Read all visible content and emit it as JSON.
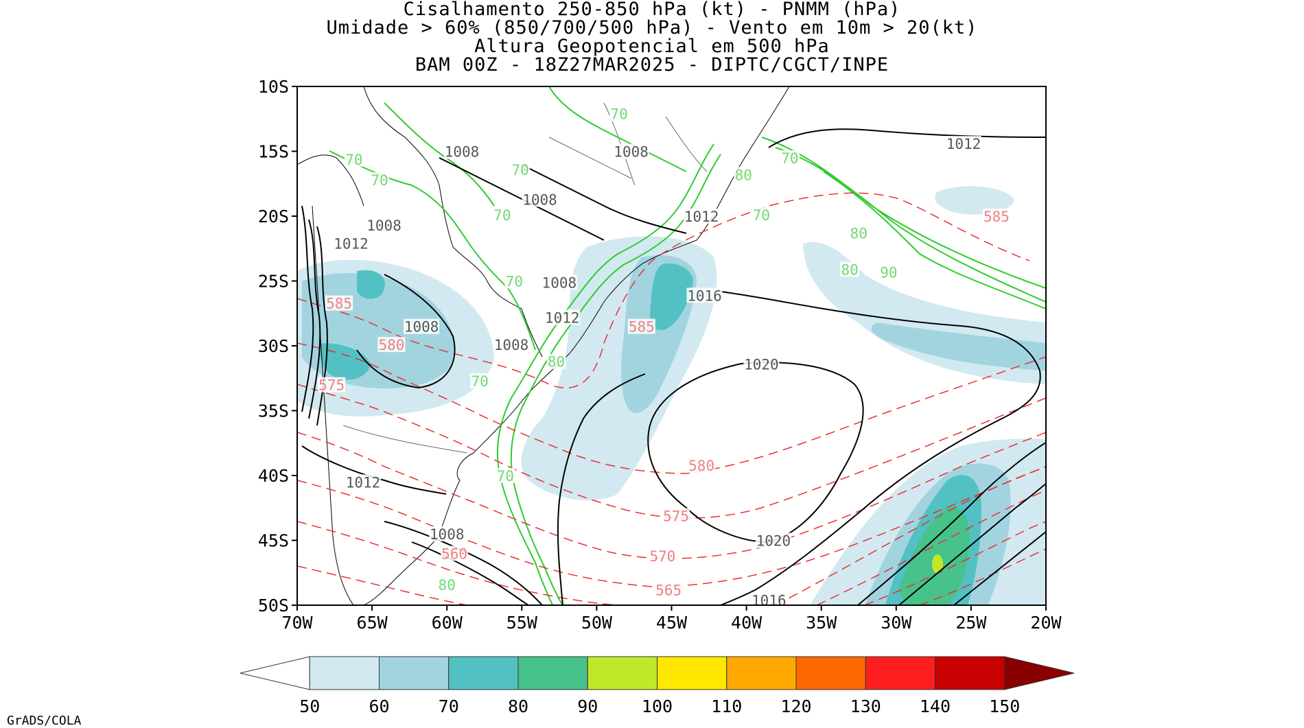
{
  "titles": {
    "line1": "Cisalhamento 250-850 hPa (kt) - PNMM (hPa)",
    "line2": "Umidade > 60% (850/700/500 hPa) - Vento em 10m > 20(kt)",
    "line3": "Altura Geopotencial em 500 hPa",
    "line4": "BAM 00Z - 18Z27MAR2025 - DIPTC/CGCT/INPE"
  },
  "credit": "GrADS/COLA",
  "map": {
    "lon_range": [
      -70,
      -20
    ],
    "lat_range": [
      -50,
      -10
    ],
    "lat_ticks": [
      {
        "value": -10,
        "label": "10S"
      },
      {
        "value": -15,
        "label": "15S"
      },
      {
        "value": -20,
        "label": "20S"
      },
      {
        "value": -25,
        "label": "25S"
      },
      {
        "value": -30,
        "label": "30S"
      },
      {
        "value": -35,
        "label": "35S"
      },
      {
        "value": -40,
        "label": "40S"
      },
      {
        "value": -45,
        "label": "45S"
      },
      {
        "value": -50,
        "label": "50S"
      }
    ],
    "lon_ticks": [
      {
        "value": -70,
        "label": "70W"
      },
      {
        "value": -65,
        "label": "65W"
      },
      {
        "value": -60,
        "label": "60W"
      },
      {
        "value": -55,
        "label": "55W"
      },
      {
        "value": -50,
        "label": "50W"
      },
      {
        "value": -45,
        "label": "45W"
      },
      {
        "value": -40,
        "label": "40W"
      },
      {
        "value": -35,
        "label": "35W"
      },
      {
        "value": -30,
        "label": "30W"
      },
      {
        "value": -25,
        "label": "25W"
      },
      {
        "value": -20,
        "label": "20W"
      }
    ],
    "colors": {
      "pressure": "#000000",
      "geopotential": "#e83030",
      "geopotential_label": "#f08080",
      "humidity": "#2ecc2e",
      "humidity_label": "#72d872",
      "pressure_label": "#555555",
      "coast": "#000000"
    },
    "pressure_labels": [
      {
        "text": "1012",
        "lon": -25.5,
        "lat": -14.4
      },
      {
        "text": "1008",
        "lon": -59.0,
        "lat": -15.0
      },
      {
        "text": "1008",
        "lon": -47.7,
        "lat": -15.0
      },
      {
        "text": "1008",
        "lon": -53.8,
        "lat": -18.7
      },
      {
        "text": "1008",
        "lon": -64.2,
        "lat": -20.7
      },
      {
        "text": "1012",
        "lon": -66.4,
        "lat": -22.1
      },
      {
        "text": "1012",
        "lon": -43.0,
        "lat": -20.0
      },
      {
        "text": "1008",
        "lon": -52.5,
        "lat": -25.1
      },
      {
        "text": "1016",
        "lon": -42.8,
        "lat": -26.1
      },
      {
        "text": "1012",
        "lon": -52.3,
        "lat": -27.8
      },
      {
        "text": "1008",
        "lon": -61.7,
        "lat": -28.5
      },
      {
        "text": "1008",
        "lon": -55.7,
        "lat": -29.9
      },
      {
        "text": "1020",
        "lon": -39.0,
        "lat": -31.4
      },
      {
        "text": "1012",
        "lon": -65.6,
        "lat": -40.5
      },
      {
        "text": "1008",
        "lon": -60.0,
        "lat": -44.5
      },
      {
        "text": "1020",
        "lon": -38.2,
        "lat": -45.0
      },
      {
        "text": "1016",
        "lon": -38.5,
        "lat": -49.6
      }
    ],
    "geopotential_labels": [
      {
        "text": "585",
        "lon": -23.3,
        "lat": -20.0
      },
      {
        "text": "585",
        "lon": -67.2,
        "lat": -26.7
      },
      {
        "text": "580",
        "lon": -63.7,
        "lat": -29.9
      },
      {
        "text": "575",
        "lon": -67.7,
        "lat": -33.0
      },
      {
        "text": "585",
        "lon": -47.0,
        "lat": -28.5
      },
      {
        "text": "580",
        "lon": -43.0,
        "lat": -39.2
      },
      {
        "text": "575",
        "lon": -44.7,
        "lat": -43.1
      },
      {
        "text": "570",
        "lon": -45.6,
        "lat": -46.2
      },
      {
        "text": "565",
        "lon": -45.2,
        "lat": -48.8
      },
      {
        "text": "560",
        "lon": -59.5,
        "lat": -46.0
      }
    ],
    "humidity_labels": [
      {
        "text": "70",
        "lon": -48.5,
        "lat": -12.1
      },
      {
        "text": "70",
        "lon": -66.2,
        "lat": -15.6
      },
      {
        "text": "70",
        "lon": -64.5,
        "lat": -17.2
      },
      {
        "text": "70",
        "lon": -55.1,
        "lat": -16.4
      },
      {
        "text": "70",
        "lon": -56.3,
        "lat": -19.9
      },
      {
        "text": "70",
        "lon": -39.0,
        "lat": -19.9
      },
      {
        "text": "70",
        "lon": -37.1,
        "lat": -15.5
      },
      {
        "text": "80",
        "lon": -40.2,
        "lat": -16.8
      },
      {
        "text": "80",
        "lon": -32.5,
        "lat": -21.3
      },
      {
        "text": "80",
        "lon": -33.1,
        "lat": -24.1
      },
      {
        "text": "90",
        "lon": -30.5,
        "lat": -24.3
      },
      {
        "text": "70",
        "lon": -55.5,
        "lat": -25.0
      },
      {
        "text": "80",
        "lon": -52.7,
        "lat": -31.2
      },
      {
        "text": "70",
        "lon": -57.8,
        "lat": -32.7
      },
      {
        "text": "70",
        "lon": -56.1,
        "lat": -40.0
      },
      {
        "text": "80",
        "lon": -60.0,
        "lat": -48.4
      }
    ]
  },
  "colorbar": {
    "labels": [
      "50",
      "60",
      "70",
      "80",
      "90",
      "100",
      "110",
      "120",
      "130",
      "140",
      "150"
    ],
    "colors": [
      "#d2e9f1",
      "#a2d4e0",
      "#53c1c3",
      "#47c28b",
      "#c0e828",
      "#ffe800",
      "#ffa800",
      "#ff6800",
      "#ff1e1e",
      "#c80000",
      "#8a0000"
    ]
  }
}
